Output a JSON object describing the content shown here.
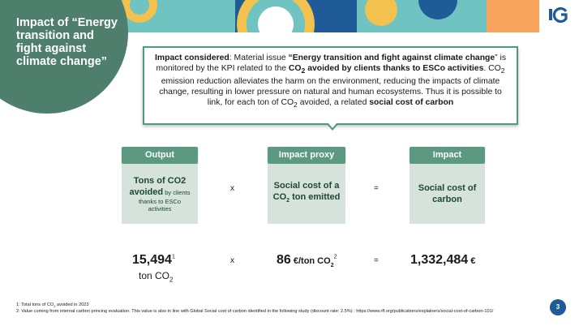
{
  "slide": {
    "title": "Impact of “Energy transition and fight against climate change”",
    "page_number": "3",
    "logo_text": "IG"
  },
  "impact_box": {
    "t1": "Impact considered",
    "t2": ": Material issue ",
    "t3": "“Energy transition and fight against climate change",
    "t4": "” is monitored by the KPI related to the ",
    "t5": "CO",
    "t6": "2",
    "t7": " avoided by clients thanks to ESCo activities",
    "t8": ". CO",
    "t9": "2",
    "t10": " emission reduction alleviates the harm on the environment, reducing the impacts of climate change, resulting in lower pressure on natural and human ecosystems. Thus it is possible to link, for each ton of CO",
    "t11": "2",
    "t12": " avoided, a related ",
    "t13": "social cost of carbon"
  },
  "columns": {
    "output": {
      "header": "Output",
      "body_bold": "Tons of CO2 avoided",
      "body_small_inline": " by clients",
      "body_small": "thanks to ESCo activities"
    },
    "proxy": {
      "header": "Impact proxy",
      "body_line1": "Social cost of a",
      "body_line2a": "CO",
      "body_line2b": "2",
      "body_line2c": " ton emitted"
    },
    "impact": {
      "header": "Impact",
      "body_line1": "Social cost of",
      "body_line2": "carbon"
    }
  },
  "operators": {
    "times": "x",
    "equals": "="
  },
  "values": {
    "output_value": "15,494",
    "output_sup": "1",
    "output_unit_a": "ton CO",
    "output_unit_b": "2",
    "proxy_value": "86",
    "proxy_unit_a": " €/ton CO",
    "proxy_unit_b": "2",
    "proxy_sup": "2",
    "impact_value": "1,332,484",
    "impact_unit": " €"
  },
  "footnotes": {
    "f1a": "1: Total tons of CO",
    "f1b": "2",
    "f1c": "  avoided in 2023",
    "f2": "2: Value coming from internal carbon princing evaluation. This value is also in line with Global Social cost of carbon identified in the following study (discount rate: 2.5%) : https://www.rff.org/publications/explainers/social-cost-of-carbon-101/"
  },
  "colors": {
    "primary_green": "#4e7f6d",
    "header_green": "#5b9980",
    "body_green": "#d6e3dd",
    "border_green": "#4e9a7f",
    "accent_yellow": "#f2c14e",
    "accent_blue": "#1f5b96",
    "accent_teal": "#6fc3c0"
  }
}
